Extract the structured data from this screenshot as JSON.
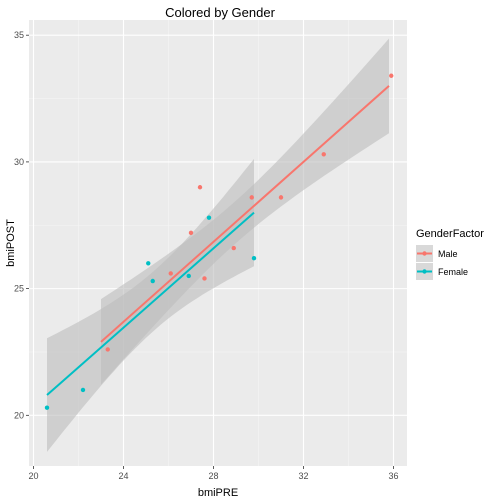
{
  "chart_data": {
    "type": "scatter",
    "title": "Colored by Gender",
    "xlabel": "bmiPRE",
    "ylabel": "bmiPOST",
    "xlim": [
      19.8,
      36.6
    ],
    "ylim": [
      18.0,
      35.6
    ],
    "x_ticks": [
      20,
      24,
      28,
      32,
      36
    ],
    "y_ticks": [
      20,
      25,
      30,
      35
    ],
    "grid": true,
    "legend": {
      "title": "GenderFactor",
      "position": "right"
    },
    "background_color": "#ebebeb",
    "ribbon_color": "#bdbdbd",
    "series": [
      {
        "name": "Male",
        "color": "#f8766d",
        "points": [
          {
            "x": 23.3,
            "y": 22.6
          },
          {
            "x": 26.1,
            "y": 25.6
          },
          {
            "x": 27.0,
            "y": 27.2
          },
          {
            "x": 27.4,
            "y": 29.0
          },
          {
            "x": 27.6,
            "y": 25.4
          },
          {
            "x": 28.9,
            "y": 26.6
          },
          {
            "x": 29.7,
            "y": 28.6
          },
          {
            "x": 31.0,
            "y": 28.6
          },
          {
            "x": 32.9,
            "y": 30.3
          },
          {
            "x": 35.9,
            "y": 33.4
          }
        ],
        "fit": {
          "x": [
            23.0,
            35.8
          ],
          "y": [
            22.9,
            33.0
          ]
        }
      },
      {
        "name": "Female",
        "color": "#00bfc4",
        "points": [
          {
            "x": 20.6,
            "y": 20.3
          },
          {
            "x": 22.2,
            "y": 21.0
          },
          {
            "x": 25.1,
            "y": 26.0
          },
          {
            "x": 25.3,
            "y": 25.3
          },
          {
            "x": 26.9,
            "y": 25.5
          },
          {
            "x": 27.8,
            "y": 27.8
          },
          {
            "x": 29.8,
            "y": 26.2
          }
        ],
        "fit": {
          "x": [
            20.6,
            29.8
          ],
          "y": [
            20.8,
            28.0
          ]
        }
      }
    ]
  }
}
